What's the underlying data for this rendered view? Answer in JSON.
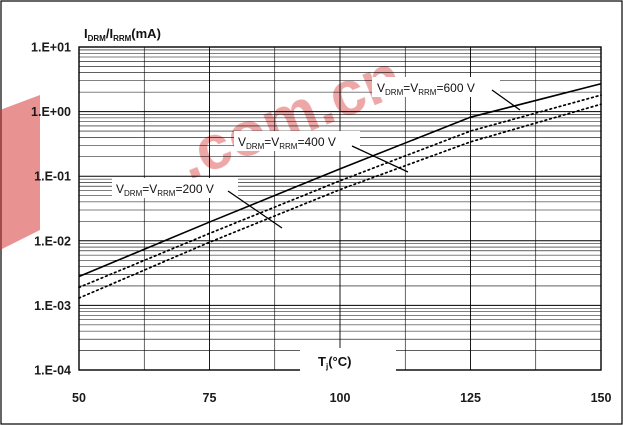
{
  "chart_data": {
    "type": "line",
    "title": "",
    "ylabel": {
      "main_1": "I",
      "sub_1": "DRM",
      "main_2": "/I",
      "sub_2": "RRM",
      "unit": "(mA)"
    },
    "xlabel": {
      "main": "T",
      "sub": "j",
      "unit": "(°C)"
    },
    "x_scale": "linear",
    "y_scale": "log",
    "xlim": [
      50,
      150
    ],
    "ylim": [
      0.0001,
      10
    ],
    "x_ticks": [
      50,
      75,
      100,
      125,
      150
    ],
    "x_tick_labels": [
      "50",
      "75",
      "100",
      "125",
      "150"
    ],
    "y_ticks": [
      0.0001,
      0.001,
      0.01,
      0.1,
      1,
      10
    ],
    "y_tick_labels": [
      "1.E-04",
      "1.E-03",
      "1.E-02",
      "1.E-01",
      "1.E+00",
      "1.E+01"
    ],
    "grid": true,
    "series": [
      {
        "name": "VDRM=VRRM=600 V",
        "label": {
          "v1": "V",
          "s1": "DRM",
          "eq": "=V",
          "s2": "RRM",
          "rest": "=600 V"
        },
        "style": "solid",
        "color": "#000000",
        "x": [
          50,
          75,
          100,
          125,
          150
        ],
        "y": [
          0.0028,
          0.0195,
          0.13,
          0.82,
          2.7
        ]
      },
      {
        "name": "VDRM=VRRM=400 V",
        "label": {
          "v1": "V",
          "s1": "DRM",
          "eq": "=V",
          "s2": "RRM",
          "rest": "=400 V"
        },
        "style": "dotted",
        "color": "#000000",
        "x": [
          50,
          75,
          100,
          125,
          150
        ],
        "y": [
          0.0019,
          0.013,
          0.085,
          0.5,
          1.8
        ]
      },
      {
        "name": "VDRM=VRRM=200 V",
        "label": {
          "v1": "V",
          "s1": "DRM",
          "eq": "=V",
          "s2": "RRM",
          "rest": "=200 V"
        },
        "style": "dotted",
        "color": "#000000",
        "x": [
          50,
          75,
          100,
          125,
          150
        ],
        "y": [
          0.0013,
          0.0095,
          0.062,
          0.34,
          1.3
        ]
      }
    ]
  },
  "watermark": {
    "text": ".com.cn",
    "color": "#d84a4a"
  }
}
